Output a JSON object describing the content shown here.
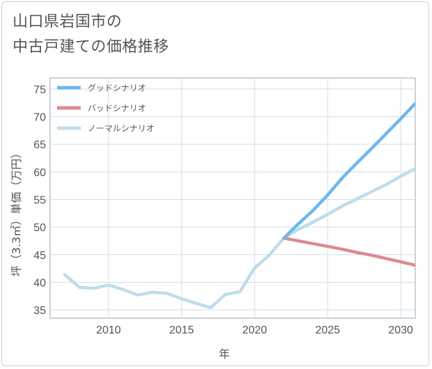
{
  "title": {
    "line1": "山口県岩国市の",
    "line2": "中古戸建ての価格推移"
  },
  "colors": {
    "good": "#6cb8ec",
    "bad": "#db8a92",
    "normal": "#c0dcea",
    "grid": "#d0dde6",
    "axis": "#9aa7b0",
    "text": "#555555"
  },
  "chart_data": {
    "type": "line",
    "xlabel": "年",
    "ylabel": "坪（3.3㎡）単価（万円）",
    "xlim": [
      2006,
      2031
    ],
    "ylim": [
      33.5,
      77
    ],
    "xticks": [
      2010,
      2015,
      2020,
      2025,
      2030
    ],
    "yticks": [
      35,
      40,
      45,
      50,
      55,
      60,
      65,
      70,
      75
    ],
    "legend_position": "top-left",
    "series": [
      {
        "key": "good",
        "name": "グッドシナリオ",
        "x": [
          2022,
          2023,
          2024,
          2025,
          2026,
          2027,
          2028,
          2029,
          2030,
          2031
        ],
        "values": [
          48.0,
          50.6,
          53.0,
          55.8,
          58.9,
          61.6,
          64.2,
          66.9,
          69.6,
          72.4
        ]
      },
      {
        "key": "bad",
        "name": "バッドシナリオ",
        "x": [
          2022,
          2023,
          2024,
          2025,
          2026,
          2027,
          2028,
          2029,
          2030,
          2031
        ],
        "values": [
          48.0,
          47.5,
          47.0,
          46.5,
          46.0,
          45.4,
          44.9,
          44.3,
          43.7,
          43.1
        ]
      },
      {
        "key": "normal",
        "name": "ノーマルシナリオ",
        "x": [
          2007,
          2008,
          2009,
          2010,
          2011,
          2012,
          2013,
          2014,
          2015,
          2016,
          2017,
          2018,
          2019,
          2020,
          2021,
          2022,
          2023,
          2024,
          2025,
          2026,
          2027,
          2028,
          2029,
          2030,
          2031
        ],
        "values": [
          41.4,
          39.1,
          38.9,
          39.5,
          38.7,
          37.7,
          38.2,
          38.0,
          37.0,
          36.2,
          35.4,
          37.8,
          38.3,
          42.6,
          44.9,
          48.0,
          49.6,
          50.9,
          52.3,
          53.8,
          55.1,
          56.4,
          57.7,
          59.2,
          60.6
        ]
      }
    ]
  }
}
